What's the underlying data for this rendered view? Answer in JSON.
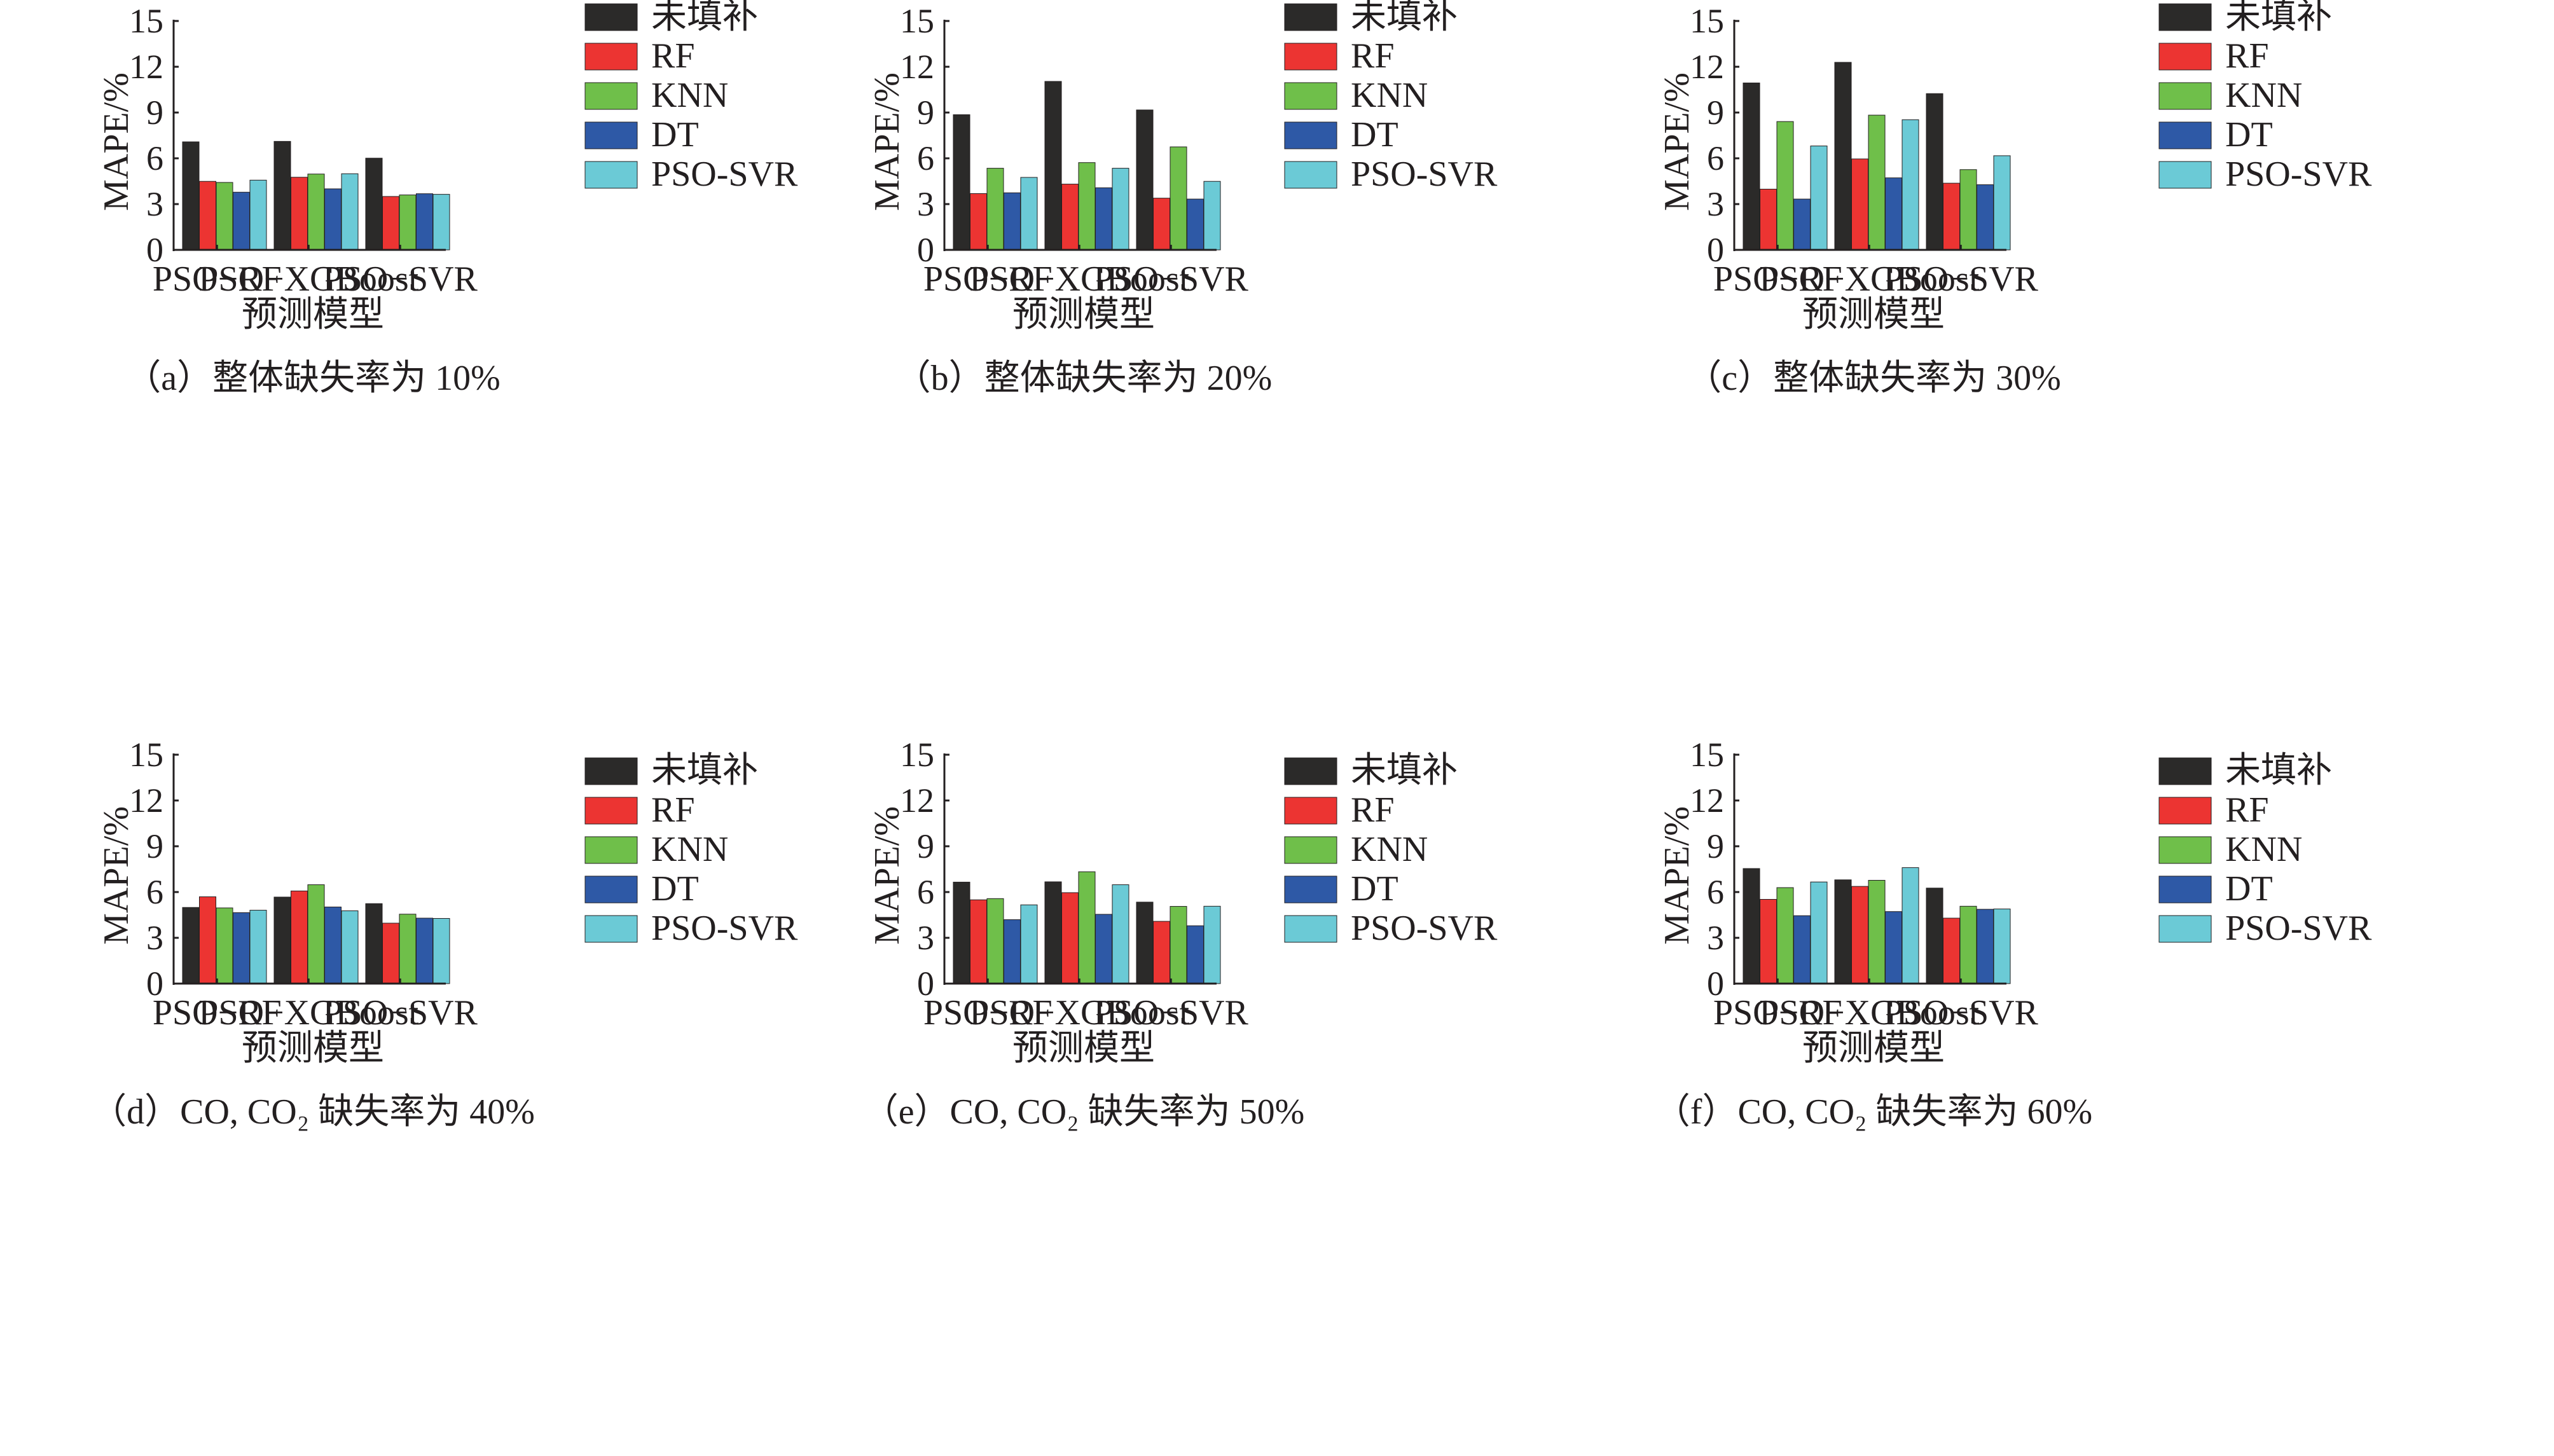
{
  "figure": {
    "legend_labels": [
      "未填补",
      "RF",
      "KNN",
      "DT",
      "PSO-SVR"
    ],
    "series_colors": [
      "#2b2a29",
      "#ec3432",
      "#6fbf4a",
      "#2e59a6",
      "#6bcad6"
    ]
  },
  "chart_data": [
    {
      "type": "bar",
      "panel": "a",
      "caption": "（a）整体缺失率为 10%",
      "xlabel": "预测模型",
      "ylabel": "MAPE/%",
      "ylim": [
        0,
        15
      ],
      "yticks": [
        "0",
        "3",
        "6",
        "9",
        "12",
        "15"
      ],
      "categories": [
        "PSO−RF",
        "PSO−XGBoost",
        "PSO−SVR"
      ],
      "legend_position": "top-right",
      "series": [
        {
          "name": "未填补",
          "values": [
            7.08,
            7.11,
            6.01
          ]
        },
        {
          "name": "RF",
          "values": [
            4.49,
            4.76,
            3.5
          ]
        },
        {
          "name": "KNN",
          "values": [
            4.42,
            4.97,
            3.6
          ]
        },
        {
          "name": "DT",
          "values": [
            3.78,
            4.0,
            3.68
          ]
        },
        {
          "name": "PSO-SVR",
          "values": [
            4.57,
            4.99,
            3.64
          ]
        }
      ]
    },
    {
      "type": "bar",
      "panel": "b",
      "caption": "（b）整体缺失率为 20%",
      "xlabel": "预测模型",
      "ylabel": "MAPE/%",
      "ylim": [
        0,
        15
      ],
      "yticks": [
        "0",
        "3",
        "6",
        "9",
        "12",
        "15"
      ],
      "categories": [
        "PSO−RF",
        "PSO−XGBoost",
        "PSO−SVR"
      ],
      "legend_position": "top-right",
      "series": [
        {
          "name": "未填补",
          "values": [
            8.86,
            11.04,
            9.17
          ]
        },
        {
          "name": "RF",
          "values": [
            3.69,
            4.31,
            3.39
          ]
        },
        {
          "name": "KNN",
          "values": [
            5.35,
            5.72,
            6.75
          ]
        },
        {
          "name": "DT",
          "values": [
            3.74,
            4.07,
            3.33
          ]
        },
        {
          "name": "PSO-SVR",
          "values": [
            4.75,
            5.35,
            4.49
          ]
        }
      ]
    },
    {
      "type": "bar",
      "panel": "c",
      "caption": "（c）整体缺失率为 30%",
      "xlabel": "预测模型",
      "ylabel": "MAPE/%",
      "ylim": [
        0,
        15
      ],
      "yticks": [
        "0",
        "3",
        "6",
        "9",
        "12",
        "15"
      ],
      "categories": [
        "PSO−RF",
        "PSO−XGBoost",
        "PSO−SVR"
      ],
      "legend_position": "top-right",
      "series": [
        {
          "name": "未填补",
          "values": [
            10.94,
            12.29,
            10.24
          ]
        },
        {
          "name": "RF",
          "values": [
            3.98,
            5.96,
            4.37
          ]
        },
        {
          "name": "KNN",
          "values": [
            8.41,
            8.83,
            5.26
          ]
        },
        {
          "name": "DT",
          "values": [
            3.33,
            4.72,
            4.27
          ]
        },
        {
          "name": "PSO-SVR",
          "values": [
            6.81,
            8.53,
            6.17
          ]
        }
      ]
    },
    {
      "type": "bar",
      "panel": "d",
      "caption": "（d）CO, CO₂ 缺失率为 40%",
      "xlabel": "预测模型",
      "ylabel": "MAPE/%",
      "ylim": [
        0,
        15
      ],
      "yticks": [
        "0",
        "3",
        "6",
        "9",
        "12",
        "15"
      ],
      "categories": [
        "PSO−RF",
        "PSO−XGBoost",
        "PSO−SVR"
      ],
      "legend_position": "top-right",
      "series": [
        {
          "name": "未填补",
          "values": [
            4.99,
            5.67,
            5.24
          ]
        },
        {
          "name": "RF",
          "values": [
            5.69,
            6.07,
            3.96
          ]
        },
        {
          "name": "KNN",
          "values": [
            4.96,
            6.48,
            4.55
          ]
        },
        {
          "name": "DT",
          "values": [
            4.65,
            5.02,
            4.29
          ]
        },
        {
          "name": "PSO-SVR",
          "values": [
            4.81,
            4.77,
            4.27
          ]
        }
      ]
    },
    {
      "type": "bar",
      "panel": "e",
      "caption": "（e）CO, CO₂ 缺失率为 50%",
      "xlabel": "预测模型",
      "ylabel": "MAPE/%",
      "ylim": [
        0,
        15
      ],
      "yticks": [
        "0",
        "3",
        "6",
        "9",
        "12",
        "15"
      ],
      "categories": [
        "PSO−RF",
        "PSO−XGBoost",
        "PSO−SVR"
      ],
      "legend_position": "top-right",
      "series": [
        {
          "name": "未填补",
          "values": [
            6.65,
            6.67,
            5.34
          ]
        },
        {
          "name": "RF",
          "values": [
            5.49,
            5.96,
            4.08
          ]
        },
        {
          "name": "KNN",
          "values": [
            5.57,
            7.33,
            5.06
          ]
        },
        {
          "name": "DT",
          "values": [
            4.19,
            4.54,
            3.79
          ]
        },
        {
          "name": "PSO-SVR",
          "values": [
            5.16,
            6.48,
            5.07
          ]
        }
      ]
    },
    {
      "type": "bar",
      "panel": "f",
      "caption": "（f）CO, CO₂ 缺失率为 60%",
      "xlabel": "预测模型",
      "ylabel": "MAPE/%",
      "ylim": [
        0,
        15
      ],
      "yticks": [
        "0",
        "3",
        "6",
        "9",
        "12",
        "15"
      ],
      "categories": [
        "PSO−RF",
        "PSO−XGBoost",
        "PSO−SVR"
      ],
      "legend_position": "top-right",
      "series": [
        {
          "name": "未填补",
          "values": [
            7.54,
            6.8,
            6.26
          ]
        },
        {
          "name": "RF",
          "values": [
            5.52,
            6.37,
            4.29
          ]
        },
        {
          "name": "KNN",
          "values": [
            6.29,
            6.77,
            5.07
          ]
        },
        {
          "name": "DT",
          "values": [
            4.45,
            4.72,
            4.87
          ]
        },
        {
          "name": "PSO-SVR",
          "values": [
            6.66,
            7.6,
            4.89
          ]
        }
      ]
    }
  ]
}
